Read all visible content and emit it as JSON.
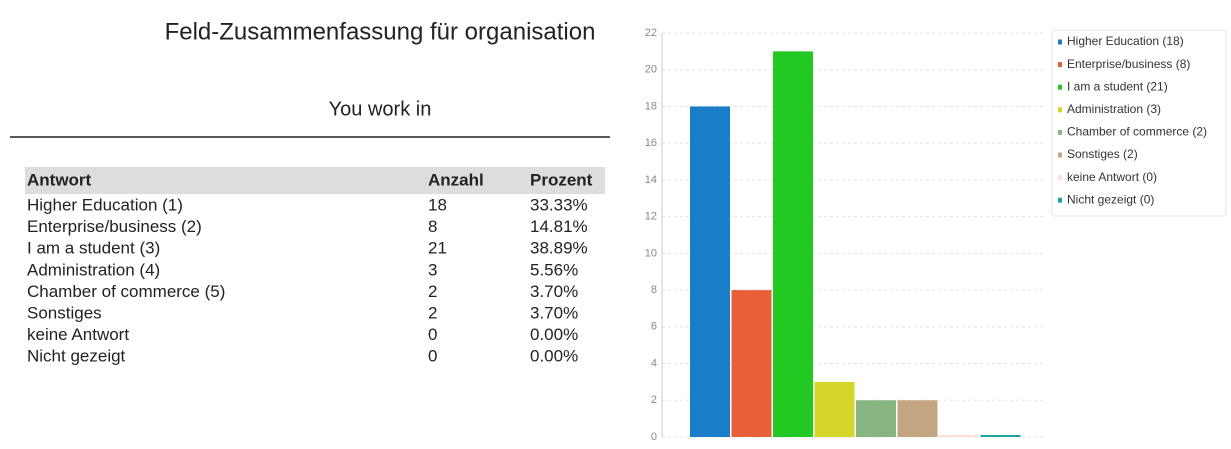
{
  "header": {
    "title": "Feld-Zusammenfassung für organisation",
    "subtitle": "You work in"
  },
  "table": {
    "columns": [
      "Antwort",
      "Anzahl",
      "Prozent"
    ],
    "rows": [
      [
        "Higher Education (1)",
        "18",
        "33.33%"
      ],
      [
        "Enterprise/business (2)",
        "8",
        "14.81%"
      ],
      [
        "I am a student (3)",
        "21",
        "38.89%"
      ],
      [
        "Administration (4)",
        "3",
        "5.56%"
      ],
      [
        "Chamber of commerce (5)",
        "2",
        "3.70%"
      ],
      [
        "Sonstiges",
        "2",
        "3.70%"
      ],
      [
        "keine Antwort",
        "0",
        "0.00%"
      ],
      [
        "Nicht gezeigt",
        "0",
        "0.00%"
      ]
    ]
  },
  "chart_data": {
    "type": "bar",
    "series": [
      {
        "name": "Higher Education (18)",
        "color": "#1a7dc8",
        "values": [
          18
        ]
      },
      {
        "name": "Enterprise/business (8)",
        "color": "#e8603a",
        "values": [
          8
        ]
      },
      {
        "name": "I am a student (21)",
        "color": "#22c922",
        "values": [
          21
        ]
      },
      {
        "name": "Administration (3)",
        "color": "#d4d62a",
        "values": [
          3
        ]
      },
      {
        "name": "Chamber of commerce (2)",
        "color": "#86b57f",
        "values": [
          2
        ]
      },
      {
        "name": "Sonstiges (2)",
        "color": "#c4a582",
        "values": [
          2
        ]
      },
      {
        "name": "keine Antwort (0)",
        "color": "#fbe0dc",
        "values": [
          0
        ]
      },
      {
        "name": "Nicht gezeigt (0)",
        "color": "#1fa3a3",
        "values": [
          0
        ]
      }
    ],
    "ylim": [
      0,
      22
    ],
    "yticks": [
      0,
      2,
      4,
      6,
      8,
      10,
      12,
      14,
      16,
      18,
      20,
      22
    ],
    "grid": true
  }
}
